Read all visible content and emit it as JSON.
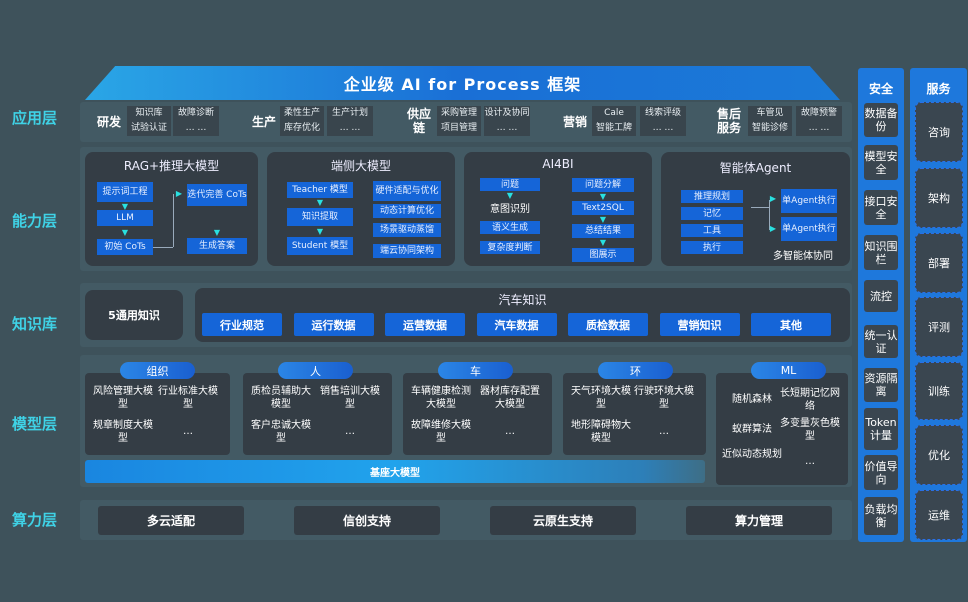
{
  "title": "企业级 AI for Process 框架",
  "layers": [
    "应用层",
    "能力层",
    "知识库",
    "模型层",
    "算力层"
  ],
  "apps": [
    {
      "name": "研发",
      "items": [
        "知识库",
        "试验认证",
        "故障诊断",
        "… …"
      ]
    },
    {
      "name": "生产",
      "items": [
        "柔性生产",
        "库存优化",
        "生产计划",
        "… …"
      ]
    },
    {
      "name": "供应链",
      "items": [
        "采购管理",
        "项目管理",
        "设计及协同",
        "… …"
      ]
    },
    {
      "name": "营销",
      "items": [
        "Cale",
        "智能工牌",
        "线索评级",
        "… …"
      ]
    },
    {
      "name": "售后服务",
      "items": [
        "车管见",
        "智能诊修",
        "故障预警",
        "… …"
      ]
    }
  ],
  "capabilities": {
    "rag": {
      "title": "RAG+推理大模型",
      "items": [
        "提示词工程",
        "LLM",
        "初始 CoTs",
        "迭代完善 CoTs",
        "生成答案"
      ]
    },
    "edge": {
      "title": "端侧大模型",
      "left": [
        "Teacher 模型",
        "知识提取",
        "Student 模型"
      ],
      "right": [
        "硬件适配与优化",
        "动态计算优化",
        "场景驱动蒸馏",
        "端云协同架构"
      ]
    },
    "ai4bi": {
      "title": "AI4BI",
      "left": [
        "问题",
        "意图识别",
        "语义生成",
        "复杂度判断"
      ],
      "right": [
        "问题分解",
        "Text2SQL",
        "总结结果",
        "图展示"
      ]
    },
    "agent": {
      "title": "智能体Agent",
      "left": [
        "推理规划",
        "记忆",
        "工具",
        "执行"
      ],
      "right": [
        "单Agent执行",
        "单Agent执行"
      ],
      "footer": "多智能体协同"
    }
  },
  "knowledge": {
    "general": "5通用知识",
    "auto_title": "汽车知识",
    "auto_items": [
      "行业规范",
      "运行数据",
      "运营数据",
      "汽车数据",
      "质检数据",
      "营销知识",
      "其他"
    ]
  },
  "models": [
    {
      "tag": "组织",
      "items": [
        "风险管理大模型",
        "行业标准大模型",
        "规章制度大模型",
        "…"
      ]
    },
    {
      "tag": "人",
      "items": [
        "质检员辅助大模型",
        "销售培训大模型",
        "客户忠诚大模型",
        "…"
      ]
    },
    {
      "tag": "车",
      "items": [
        "车辆健康检测大模型",
        "器材库存配置大模型",
        "故障维修大模型",
        "…"
      ]
    },
    {
      "tag": "环",
      "items": [
        "天气环境大模型",
        "行驶环境大模型",
        "地形障碍物大模型",
        "…"
      ]
    },
    {
      "tag": "ML",
      "items": [
        "随机森林",
        "长短期记忆网络",
        "蚁群算法",
        "多变量灰色模型",
        "近似动态规划",
        "…"
      ]
    }
  ],
  "base_model": "基座大模型",
  "compute": [
    "多云适配",
    "信创支持",
    "云原生支持",
    "算力管理"
  ],
  "security": {
    "title": "安全",
    "items": [
      "数据备份",
      "模型安全",
      "接口安全",
      "知识围栏",
      "流控",
      "统一认证",
      "资源隔离",
      "Token计量",
      "价值导向",
      "负载均衡"
    ]
  },
  "services": {
    "title": "服务",
    "items": [
      "咨询",
      "架构",
      "部署",
      "评测",
      "训练",
      "优化",
      "运维"
    ]
  }
}
